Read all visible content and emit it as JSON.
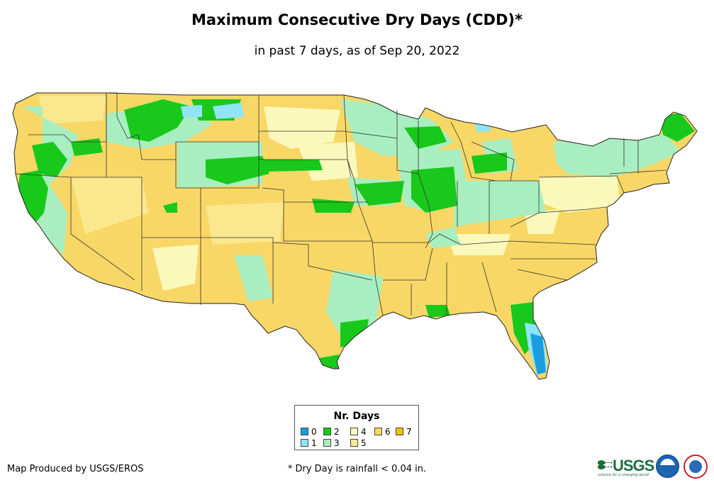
{
  "title": "Maximum Consecutive Dry Days (CDD)*",
  "subtitle": "in past 7 days, as of Sep 20, 2022",
  "legend": {
    "title": "Nr. Days",
    "items": [
      {
        "label": "0",
        "color": "#1a9ee0"
      },
      {
        "label": "1",
        "color": "#8fe4f7"
      },
      {
        "label": "2",
        "color": "#18c81a"
      },
      {
        "label": "3",
        "color": "#a9eec0"
      },
      {
        "label": "4",
        "color": "#fbf8bb"
      },
      {
        "label": "5",
        "color": "#fbe78e"
      },
      {
        "label": "6",
        "color": "#f8d766"
      },
      {
        "label": "7",
        "color": "#f6c000"
      }
    ]
  },
  "footer": {
    "credit": "Map Produced by USGS/EROS",
    "note": "* Dry Day is rainfall < 0.04 in."
  },
  "logos": {
    "usgs_text": "USGS",
    "usgs_tagline": "science for a changing world",
    "noaa_name": "noaa-logo",
    "nws_name": "national-weather-service-logo"
  },
  "map": {
    "region": "Contiguous United States",
    "base_color": "#f8d766"
  }
}
